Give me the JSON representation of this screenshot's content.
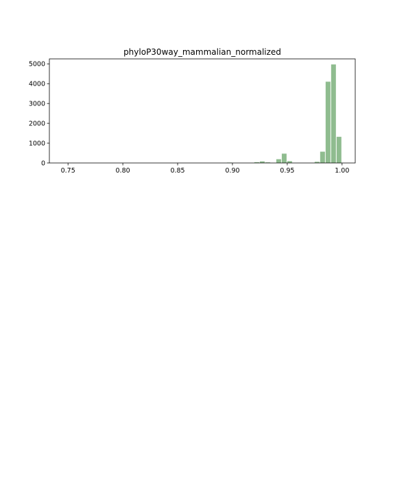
{
  "chart_data": {
    "type": "bar",
    "title": "phyloP30way_mammalian_normalized",
    "xlabel": "",
    "ylabel": "",
    "xlim": [
      0.733,
      1.012
    ],
    "ylim": [
      0,
      5250
    ],
    "x_ticks": [
      {
        "value": 0.75,
        "label": "0.75"
      },
      {
        "value": 0.8,
        "label": "0.80"
      },
      {
        "value": 0.85,
        "label": "0.85"
      },
      {
        "value": 0.9,
        "label": "0.90"
      },
      {
        "value": 0.95,
        "label": "0.95"
      },
      {
        "value": 1.0,
        "label": "1.00"
      }
    ],
    "y_ticks": [
      {
        "value": 0,
        "label": "0"
      },
      {
        "value": 1000,
        "label": "1000"
      },
      {
        "value": 2000,
        "label": "2000"
      },
      {
        "value": 3000,
        "label": "3000"
      },
      {
        "value": 4000,
        "label": "4000"
      },
      {
        "value": 5000,
        "label": "5000"
      }
    ],
    "bin_width": 0.005,
    "bar_color": "#8fbc8f",
    "grid": false,
    "bins": [
      {
        "x0": 0.745,
        "count": 2
      },
      {
        "x0": 0.895,
        "count": 20
      },
      {
        "x0": 0.92,
        "count": 40
      },
      {
        "x0": 0.925,
        "count": 80
      },
      {
        "x0": 0.93,
        "count": 30
      },
      {
        "x0": 0.94,
        "count": 190
      },
      {
        "x0": 0.945,
        "count": 470
      },
      {
        "x0": 0.95,
        "count": 90
      },
      {
        "x0": 0.975,
        "count": 60
      },
      {
        "x0": 0.98,
        "count": 570
      },
      {
        "x0": 0.985,
        "count": 4100
      },
      {
        "x0": 0.99,
        "count": 4970
      },
      {
        "x0": 0.995,
        "count": 1320
      }
    ]
  }
}
